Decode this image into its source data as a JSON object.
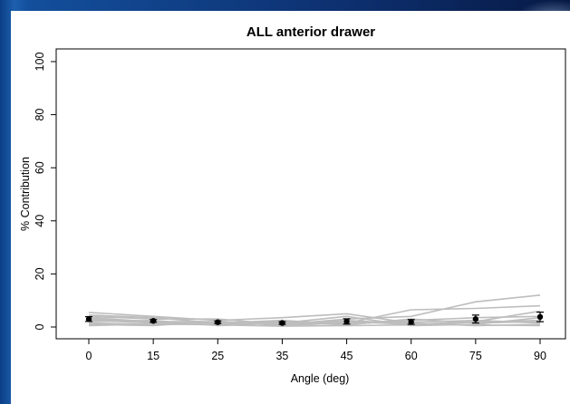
{
  "chart_data": {
    "type": "line",
    "title": "ALL anterior drawer",
    "xlabel": "Angle (deg)",
    "ylabel": "% Contribution",
    "categories": [
      "0",
      "15",
      "25",
      "35",
      "45",
      "60",
      "75",
      "90"
    ],
    "x": [
      0,
      15,
      25,
      35,
      45,
      60,
      75,
      90
    ],
    "ylim": [
      0,
      100
    ],
    "yticks": [
      "0",
      "20",
      "40",
      "60",
      "80",
      "100"
    ],
    "line_color": "#bdbdbd",
    "point_color": "#000000",
    "mean": [
      3.0,
      2.3,
      1.8,
      1.5,
      2.1,
      1.9,
      3.0,
      3.8
    ],
    "error": [
      0.9,
      0.5,
      0.5,
      0.5,
      1.0,
      0.9,
      1.5,
      1.8
    ],
    "series": [
      {
        "values": [
          5.5,
          4.0,
          2.5,
          3.5,
          5.0,
          1.5,
          0.5,
          1.0
        ]
      },
      {
        "values": [
          4.5,
          3.5,
          1.5,
          2.0,
          1.5,
          6.5,
          7.0,
          8.0
        ]
      },
      {
        "values": [
          4.0,
          3.0,
          3.0,
          1.0,
          3.0,
          4.0,
          9.5,
          12.0
        ]
      },
      {
        "values": [
          3.5,
          2.0,
          2.0,
          0.8,
          2.0,
          1.0,
          2.0,
          6.0
        ]
      },
      {
        "values": [
          2.5,
          1.5,
          1.5,
          2.5,
          1.0,
          2.5,
          3.5,
          4.0
        ]
      },
      {
        "values": [
          2.0,
          2.5,
          0.5,
          1.5,
          4.0,
          0.5,
          1.0,
          3.5
        ]
      },
      {
        "values": [
          1.5,
          1.0,
          1.0,
          1.8,
          0.8,
          3.0,
          1.5,
          2.0
        ]
      },
      {
        "values": [
          1.0,
          0.5,
          2.2,
          0.5,
          1.5,
          1.8,
          2.5,
          1.5
        ]
      },
      {
        "values": [
          3.0,
          1.8,
          1.2,
          1.2,
          2.5,
          1.2,
          0.8,
          0.5
        ]
      },
      {
        "values": [
          0.5,
          1.2,
          0.8,
          0.3,
          0.5,
          0.8,
          1.8,
          2.5
        ]
      }
    ]
  }
}
